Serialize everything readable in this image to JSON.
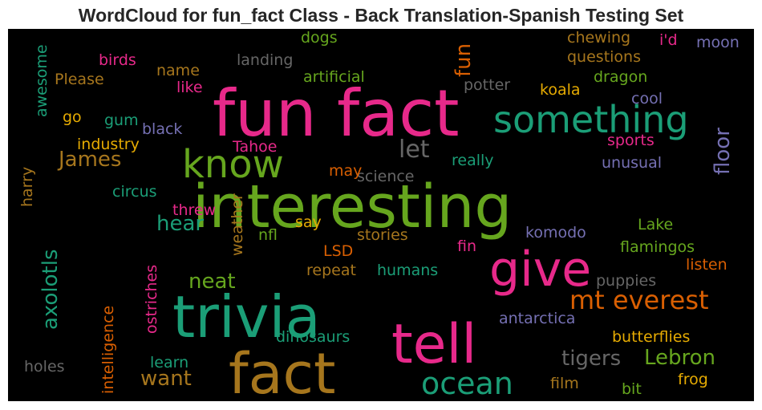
{
  "title": "WordCloud for fun_fact Class - Back Translation-Spanish Testing Set",
  "chart_data": {
    "type": "wordcloud",
    "background": "#000000",
    "colormap": "Dark2",
    "words": [
      {
        "text": "fun fact",
        "color": "#e7298a"
      },
      {
        "text": "interesting",
        "color": "#66a61e"
      },
      {
        "text": "trivia",
        "color": "#1b9e77"
      },
      {
        "text": "fact",
        "color": "#a6761d"
      },
      {
        "text": "tell",
        "color": "#e7298a"
      },
      {
        "text": "give",
        "color": "#e7298a"
      },
      {
        "text": "know",
        "color": "#66a61e"
      },
      {
        "text": "something",
        "color": "#1b9e77"
      },
      {
        "text": "ocean",
        "color": "#1b9e77"
      },
      {
        "text": "mt everest",
        "color": "#d95f02"
      },
      {
        "text": "let",
        "color": "#666666"
      },
      {
        "text": "tigers",
        "color": "#666666"
      },
      {
        "text": "Lebron",
        "color": "#66a61e"
      },
      {
        "text": "James",
        "color": "#a6761d"
      },
      {
        "text": "hear",
        "color": "#1b9e77"
      },
      {
        "text": "neat",
        "color": "#66a61e"
      },
      {
        "text": "want",
        "color": "#a6761d"
      },
      {
        "text": "axolotls",
        "color": "#1b9e77"
      },
      {
        "text": "fun",
        "color": "#d95f02"
      },
      {
        "text": "floor",
        "color": "#7570b3"
      },
      {
        "text": "dogs",
        "color": "#66a61e"
      },
      {
        "text": "birds",
        "color": "#e7298a"
      },
      {
        "text": "landing",
        "color": "#666666"
      },
      {
        "text": "chewing",
        "color": "#a6761d"
      },
      {
        "text": "i'd",
        "color": "#e7298a"
      },
      {
        "text": "moon",
        "color": "#7570b3"
      },
      {
        "text": "questions",
        "color": "#a6761d"
      },
      {
        "text": "name",
        "color": "#a6761d"
      },
      {
        "text": "Please",
        "color": "#a6761d"
      },
      {
        "text": "artificial",
        "color": "#66a61e"
      },
      {
        "text": "dragon",
        "color": "#66a61e"
      },
      {
        "text": "potter",
        "color": "#666666"
      },
      {
        "text": "like",
        "color": "#e7298a"
      },
      {
        "text": "koala",
        "color": "#e6ab02"
      },
      {
        "text": "cool",
        "color": "#7570b3"
      },
      {
        "text": "awesome",
        "color": "#1b9e77"
      },
      {
        "text": "go",
        "color": "#e6ab02"
      },
      {
        "text": "gum",
        "color": "#1b9e77"
      },
      {
        "text": "black",
        "color": "#7570b3"
      },
      {
        "text": "industry",
        "color": "#e6ab02"
      },
      {
        "text": "Tahoe",
        "color": "#e7298a"
      },
      {
        "text": "sports",
        "color": "#e7298a"
      },
      {
        "text": "really",
        "color": "#1b9e77"
      },
      {
        "text": "unusual",
        "color": "#7570b3"
      },
      {
        "text": "science",
        "color": "#666666"
      },
      {
        "text": "may",
        "color": "#d95f02"
      },
      {
        "text": "circus",
        "color": "#1b9e77"
      },
      {
        "text": "harry",
        "color": "#a6761d"
      },
      {
        "text": "threw",
        "color": "#e7298a"
      },
      {
        "text": "weather",
        "color": "#a6761d"
      },
      {
        "text": "say",
        "color": "#e6ab02"
      },
      {
        "text": "Lake",
        "color": "#66a61e"
      },
      {
        "text": "nfl",
        "color": "#66a61e"
      },
      {
        "text": "stories",
        "color": "#a6761d"
      },
      {
        "text": "komodo",
        "color": "#7570b3"
      },
      {
        "text": "flamingos",
        "color": "#66a61e"
      },
      {
        "text": "LSD",
        "color": "#d95f02"
      },
      {
        "text": "fin",
        "color": "#e7298a"
      },
      {
        "text": "listen",
        "color": "#d95f02"
      },
      {
        "text": "repeat",
        "color": "#a6761d"
      },
      {
        "text": "humans",
        "color": "#1b9e77"
      },
      {
        "text": "puppies",
        "color": "#666666"
      },
      {
        "text": "ostriches",
        "color": "#e7298a"
      },
      {
        "text": "intelligence",
        "color": "#d95f02"
      },
      {
        "text": "antarctica",
        "color": "#7570b3"
      },
      {
        "text": "dinosaurs",
        "color": "#1b9e77"
      },
      {
        "text": "butterflies",
        "color": "#e6ab02"
      },
      {
        "text": "holes",
        "color": "#666666"
      },
      {
        "text": "learn",
        "color": "#1b9e77"
      },
      {
        "text": "film",
        "color": "#a6761d"
      },
      {
        "text": "frog",
        "color": "#e6ab02"
      },
      {
        "text": "bit",
        "color": "#66a61e"
      }
    ]
  }
}
